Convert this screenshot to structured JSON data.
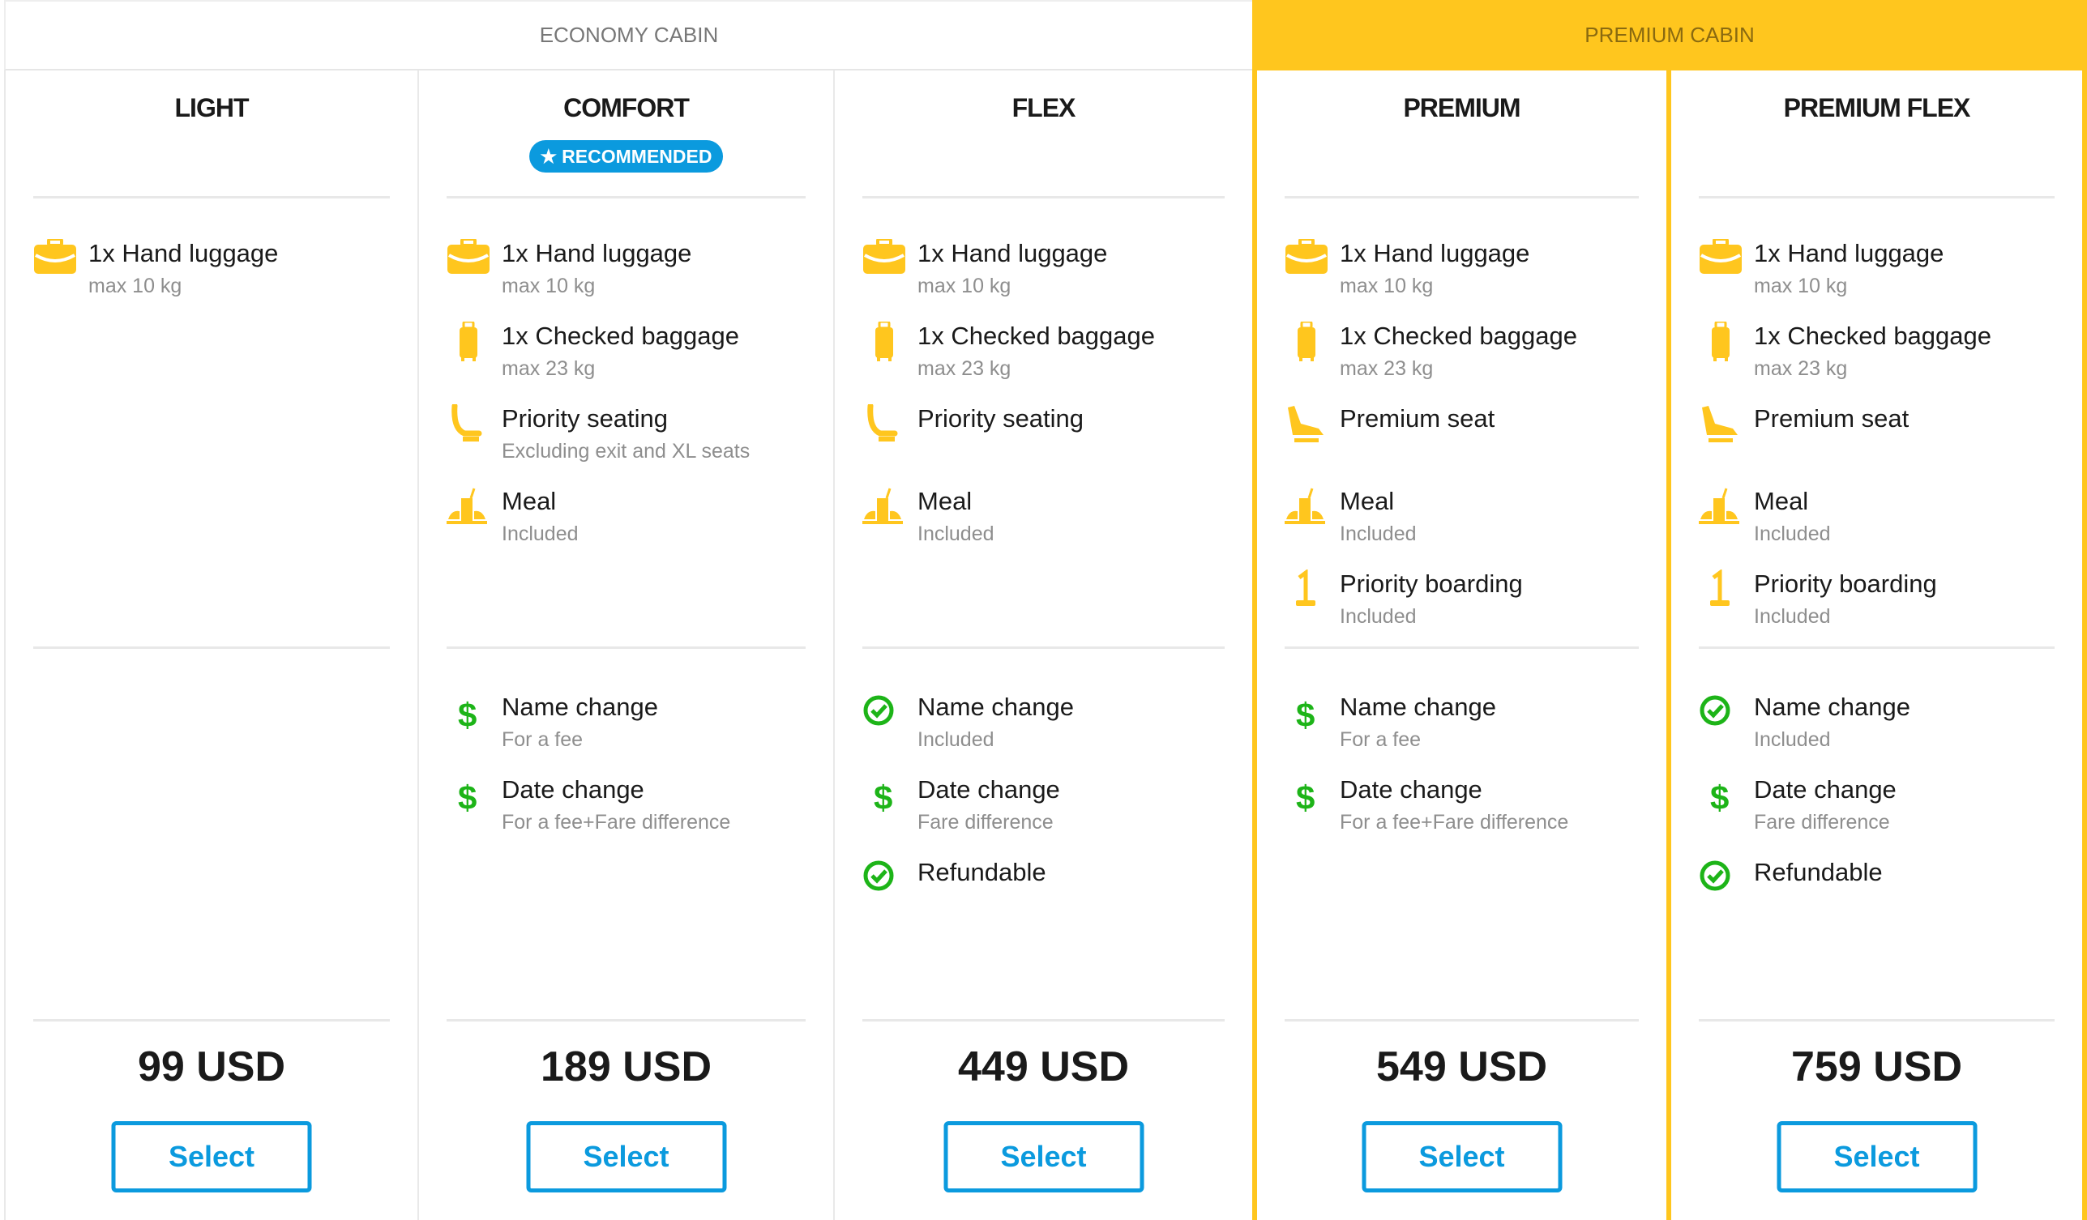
{
  "cabins": {
    "economy": "ECONOMY CABIN",
    "premium": "PREMIUM CABIN"
  },
  "colors": {
    "accent_yellow": "#ffc61e",
    "accent_blue": "#0b9ade",
    "green": "#1db418",
    "muted": "#8e8e8e"
  },
  "fares": [
    {
      "name": "LIGHT",
      "cabin": "economy",
      "features": [
        {
          "icon": "briefcase-icon",
          "title": "1x Hand luggage",
          "sub": "max 10 kg"
        }
      ],
      "policies": [],
      "price": "99 USD",
      "select": "Select"
    },
    {
      "name": "COMFORT",
      "cabin": "economy",
      "badge": "RECOMMENDED",
      "features": [
        {
          "icon": "briefcase-icon",
          "title": "1x Hand luggage",
          "sub": "max 10 kg"
        },
        {
          "icon": "suitcase-icon",
          "title": "1x Checked baggage",
          "sub": "max 23 kg"
        },
        {
          "icon": "seat-icon",
          "title": "Priority seating",
          "sub": "Excluding exit and XL seats"
        },
        {
          "icon": "meal-icon",
          "title": "Meal",
          "sub": "Included"
        }
      ],
      "policies": [
        {
          "icon": "dollar-icon",
          "title": "Name change",
          "sub": "For a fee"
        },
        {
          "icon": "dollar-icon",
          "title": "Date change",
          "sub": "For a fee+Fare difference"
        }
      ],
      "price": "189 USD",
      "select": "Select"
    },
    {
      "name": "FLEX",
      "cabin": "economy",
      "features": [
        {
          "icon": "briefcase-icon",
          "title": "1x Hand luggage",
          "sub": "max 10 kg"
        },
        {
          "icon": "suitcase-icon",
          "title": "1x Checked baggage",
          "sub": "max 23 kg"
        },
        {
          "icon": "seat-icon",
          "title": "Priority seating",
          "sub": ""
        },
        {
          "icon": "meal-icon",
          "title": "Meal",
          "sub": "Included"
        }
      ],
      "policies": [
        {
          "icon": "check-circle-icon",
          "title": "Name change",
          "sub": "Included"
        },
        {
          "icon": "dollar-icon",
          "title": "Date change",
          "sub": "Fare difference"
        },
        {
          "icon": "check-circle-icon",
          "title": "Refundable",
          "sub": ""
        }
      ],
      "price": "449 USD",
      "select": "Select"
    },
    {
      "name": "PREMIUM",
      "cabin": "premium",
      "features": [
        {
          "icon": "briefcase-icon",
          "title": "1x Hand luggage",
          "sub": "max 10 kg"
        },
        {
          "icon": "suitcase-icon",
          "title": "1x Checked baggage",
          "sub": "max 23 kg"
        },
        {
          "icon": "premium-seat-icon",
          "title": "Premium seat",
          "sub": ""
        },
        {
          "icon": "meal-icon",
          "title": "Meal",
          "sub": "Included"
        },
        {
          "icon": "priority-boarding-icon",
          "title": "Priority boarding",
          "sub": "Included"
        }
      ],
      "policies": [
        {
          "icon": "dollar-icon",
          "title": "Name change",
          "sub": "For a fee"
        },
        {
          "icon": "dollar-icon",
          "title": "Date change",
          "sub": "For a fee+Fare difference"
        }
      ],
      "price": "549 USD",
      "select": "Select"
    },
    {
      "name": "PREMIUM FLEX",
      "cabin": "premium",
      "features": [
        {
          "icon": "briefcase-icon",
          "title": "1x Hand luggage",
          "sub": "max 10 kg"
        },
        {
          "icon": "suitcase-icon",
          "title": "1x Checked baggage",
          "sub": "max 23 kg"
        },
        {
          "icon": "premium-seat-icon",
          "title": "Premium seat",
          "sub": ""
        },
        {
          "icon": "meal-icon",
          "title": "Meal",
          "sub": "Included"
        },
        {
          "icon": "priority-boarding-icon",
          "title": "Priority boarding",
          "sub": "Included"
        }
      ],
      "policies": [
        {
          "icon": "check-circle-icon",
          "title": "Name change",
          "sub": "Included"
        },
        {
          "icon": "dollar-icon",
          "title": "Date change",
          "sub": "Fare difference"
        },
        {
          "icon": "check-circle-icon",
          "title": "Refundable",
          "sub": ""
        }
      ],
      "price": "759 USD",
      "select": "Select"
    }
  ]
}
